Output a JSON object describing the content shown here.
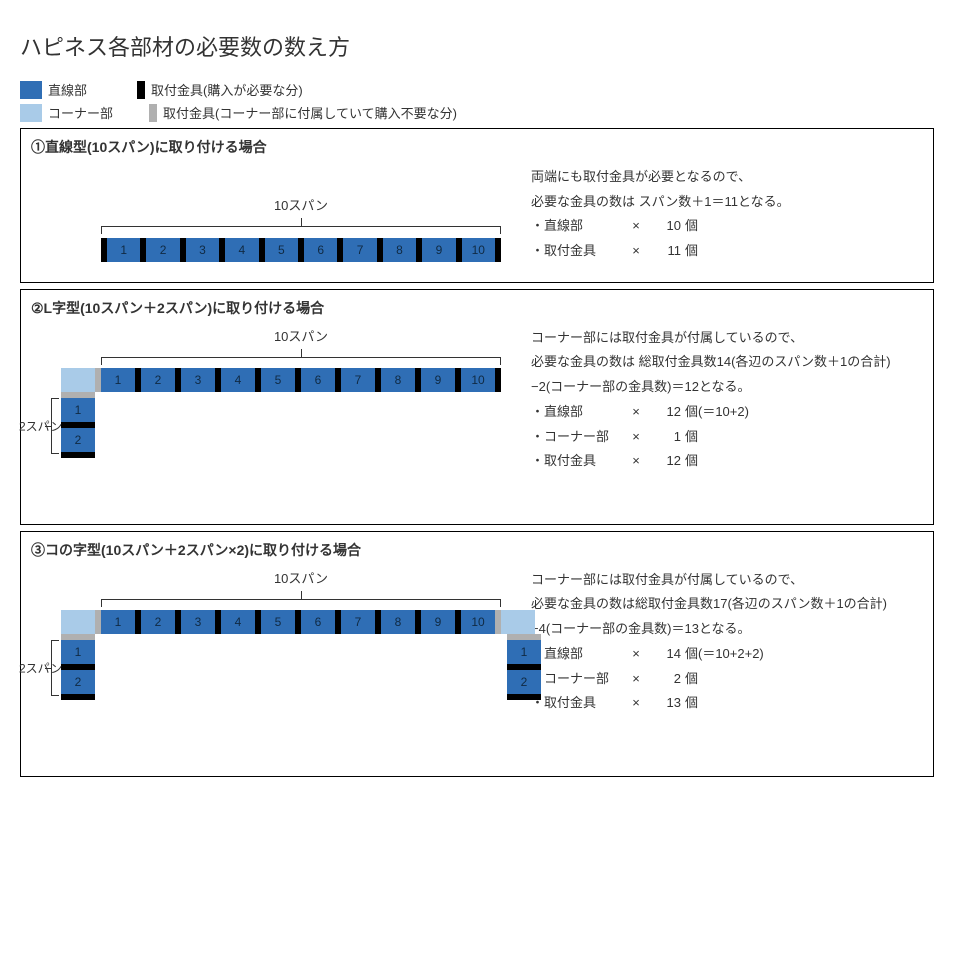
{
  "title": "ハピネス各部材の必要数の数え方",
  "colors": {
    "straight": "#2f6eb5",
    "corner": "#a9cbe8",
    "bracket_buy": "#000000",
    "bracket_inc": "#b0b0b0",
    "text_dark": "#102a43"
  },
  "legend": {
    "straight": "直線部",
    "corner": "コーナー部",
    "bracket_buy": "取付金具(購入が必要な分)",
    "bracket_inc": "取付金具(コーナー部に付属していて購入不要な分)"
  },
  "panels": [
    {
      "title": "①直線型(10スパン)に取り付ける場合",
      "span_label": "10スパン",
      "desc_lines": [
        "両端にも取付金具が必要となるので、",
        "必要な金具の数は スパン数＋1＝11となる。"
      ],
      "counts": [
        {
          "lbl": "・直線部",
          "num": "10",
          "unit": "個",
          "note": ""
        },
        {
          "lbl": "・取付金具",
          "num": "11",
          "unit": "個",
          "note": ""
        }
      ]
    },
    {
      "title": "②L字型(10スパン＋2スパン)に取り付ける場合",
      "span_label": "10スパン",
      "vspan_label": "2スパン",
      "desc_lines": [
        "コーナー部には取付金具が付属しているので、",
        "必要な金具の数は 総取付金具数14(各辺のスパン数＋1の合計)",
        "−2(コーナー部の金具数)＝12となる。"
      ],
      "counts": [
        {
          "lbl": "・直線部",
          "num": "12",
          "unit": "個(＝10+2)",
          "note": ""
        },
        {
          "lbl": "・コーナー部",
          "num": "1",
          "unit": "個",
          "note": ""
        },
        {
          "lbl": "・取付金具",
          "num": "12",
          "unit": "個",
          "note": ""
        }
      ]
    },
    {
      "title": "③コの字型(10スパン＋2スパン×2)に取り付ける場合",
      "span_label": "10スパン",
      "vspan_label": "2スパン",
      "desc_lines": [
        "コーナー部には取付金具が付属しているので、",
        "必要な金具の数は総取付金具数17(各辺のスパン数＋1の合計)",
        "−4(コーナー部の金具数)＝13となる。"
      ],
      "counts": [
        {
          "lbl": "・直線部",
          "num": "14",
          "unit": "個(＝10+2+2)",
          "note": ""
        },
        {
          "lbl": "・コーナー部",
          "num": "2",
          "unit": "個",
          "note": ""
        },
        {
          "lbl": "・取付金具",
          "num": "13",
          "unit": "個",
          "note": ""
        }
      ]
    }
  ]
}
